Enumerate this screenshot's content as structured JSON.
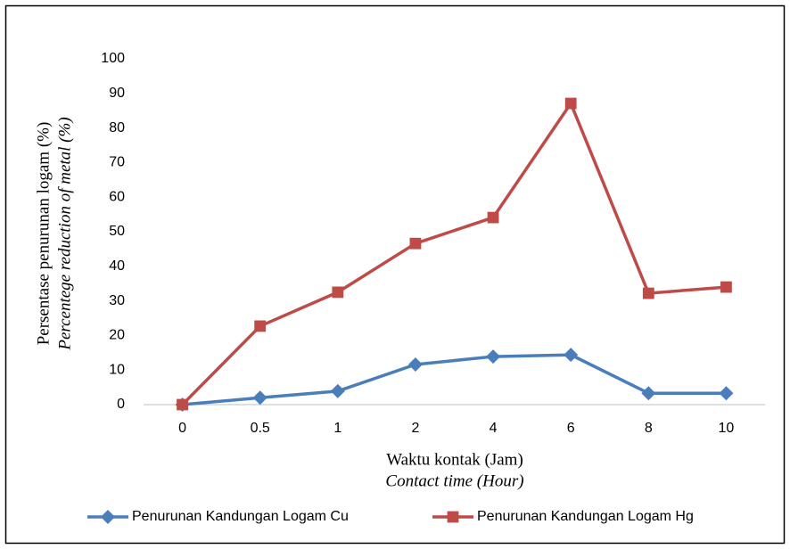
{
  "chart_data": {
    "type": "line",
    "y_label": [
      "Persentase penurunan logam (%)",
      "Percentege reduction of metal (%)"
    ],
    "x_label": [
      "Waktu kontak (Jam)",
      "Contact time (Hour)"
    ],
    "categories": [
      "0",
      "0.5",
      "1",
      "2",
      "4",
      "6",
      "8",
      "10"
    ],
    "series": [
      {
        "name": "Penurunan Kandungan Logam Cu",
        "color": "#4a7ebb",
        "marker": "diamond",
        "values": [
          0,
          2,
          3.9,
          11.6,
          13.9,
          14.4,
          3.3,
          3.3
        ]
      },
      {
        "name": "Penurunan Kandungan Logam Hg",
        "color": "#be4b48",
        "marker": "square",
        "values": [
          0,
          22.7,
          32.5,
          46.6,
          54.1,
          87.1,
          32.2,
          34
        ]
      }
    ],
    "ylim": [
      0,
      100
    ],
    "yticks": [
      0,
      10,
      20,
      30,
      40,
      50,
      60,
      70,
      80,
      90,
      100
    ],
    "grid": false,
    "legend": "bottom"
  }
}
